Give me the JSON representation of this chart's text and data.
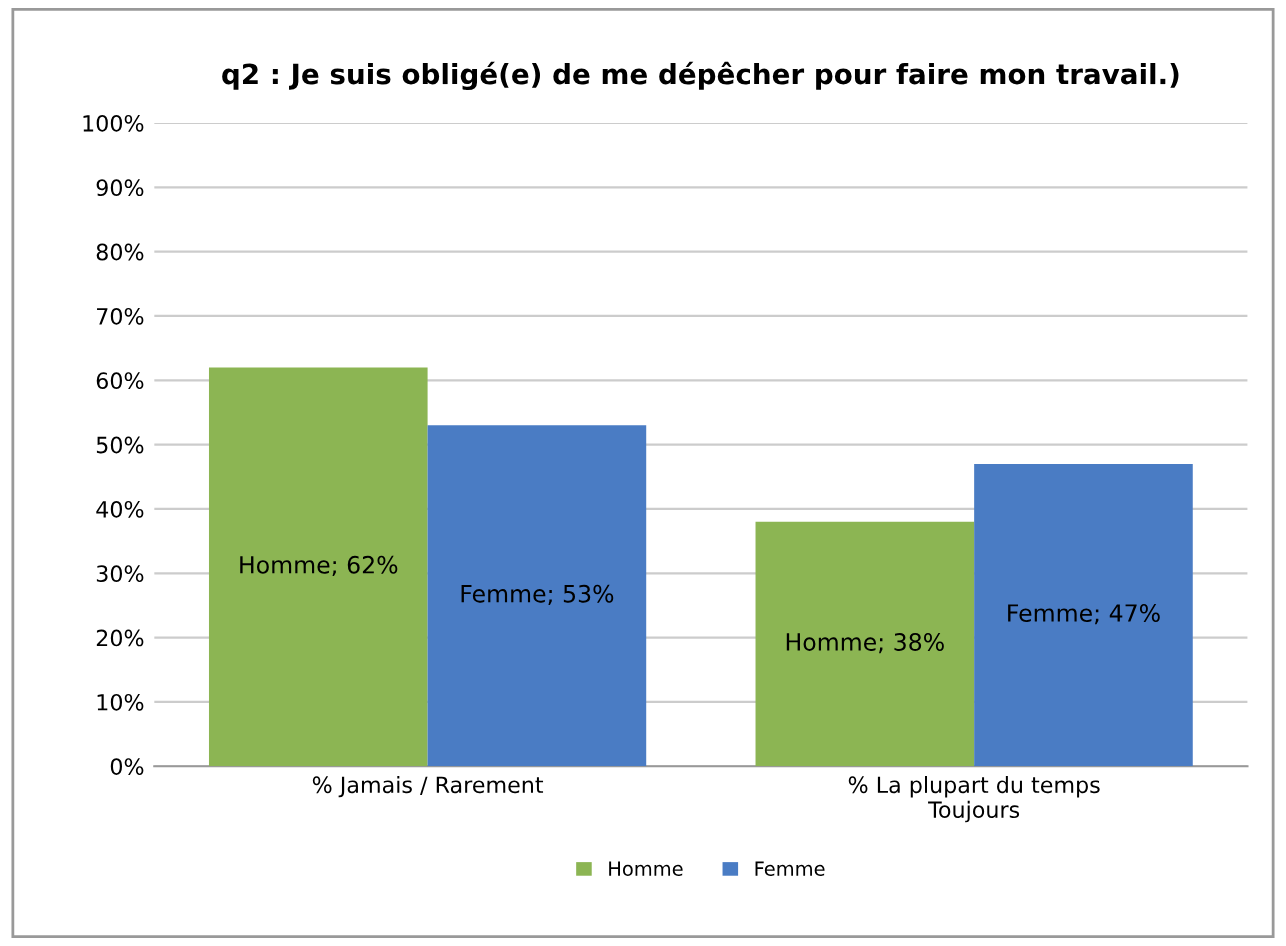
{
  "chart_data": {
    "type": "bar",
    "title": "q2 : Je suis obligé(e) de me dépêcher pour faire mon travail.)",
    "categories": [
      "% Jamais / Rarement",
      "% La plupart du temps\nToujours"
    ],
    "series": [
      {
        "name": "Homme",
        "color": "#8cb553",
        "values": [
          62,
          38
        ],
        "value_labels": [
          "Homme; 62%",
          "Homme; 38%"
        ]
      },
      {
        "name": "Femme",
        "color": "#4a7cc4",
        "values": [
          53,
          47
        ],
        "value_labels": [
          "Femme; 53%",
          "Femme; 47%"
        ]
      }
    ],
    "ylim": [
      0,
      100
    ],
    "yticks": [
      {
        "value": 0,
        "label": "0%"
      },
      {
        "value": 10,
        "label": "10%"
      },
      {
        "value": 20,
        "label": "20%"
      },
      {
        "value": 30,
        "label": "30%"
      },
      {
        "value": 40,
        "label": "40%"
      },
      {
        "value": 50,
        "label": "50%"
      },
      {
        "value": 60,
        "label": "60%"
      },
      {
        "value": 70,
        "label": "70%"
      },
      {
        "value": 80,
        "label": "80%"
      },
      {
        "value": 90,
        "label": "90%"
      },
      {
        "value": 100,
        "label": "100%"
      }
    ],
    "grid": "y",
    "legend": "bottom"
  }
}
